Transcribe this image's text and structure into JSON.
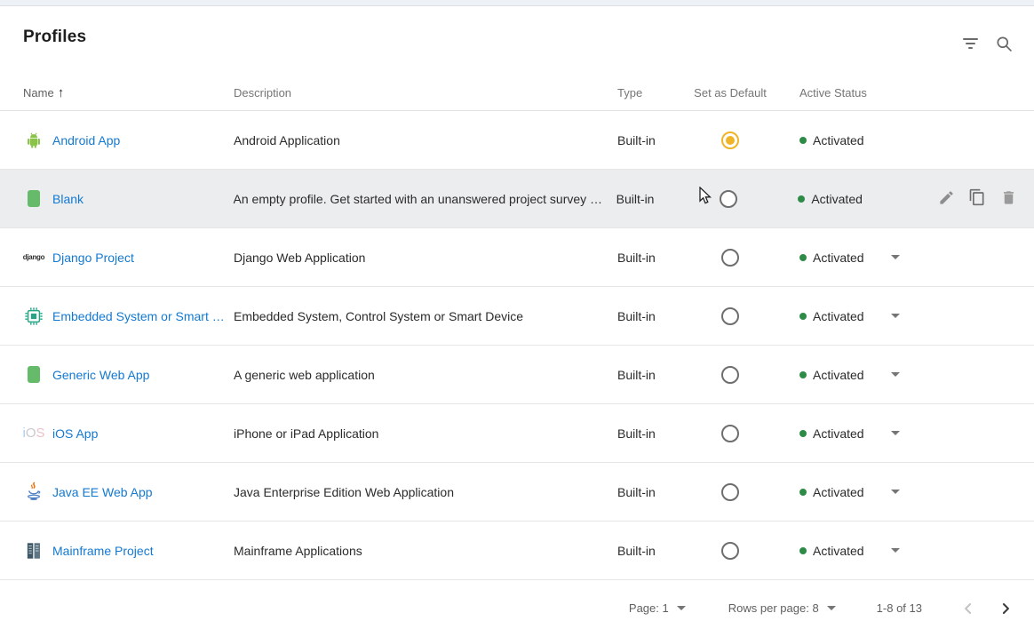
{
  "page": {
    "title": "Profiles"
  },
  "toolbar": {
    "filter_icon": "filter-list",
    "search_icon": "search"
  },
  "table": {
    "columns": {
      "name": "Name",
      "description": "Description",
      "type": "Type",
      "set_as_default": "Set as Default",
      "active_status": "Active Status"
    },
    "sort": {
      "column": "Name",
      "direction": "ascending"
    },
    "rows": [
      {
        "name": "Android App",
        "description": "Android Application",
        "type": "Built-in",
        "icon": "android-icon",
        "default": true,
        "status": "Activated",
        "caret": false,
        "hovered": false,
        "actions": false
      },
      {
        "name": "Blank",
        "description": "An empty profile. Get started with an unanswered project survey …",
        "type": "Built-in",
        "icon": "book-icon",
        "default": false,
        "status": "Activated",
        "caret": false,
        "hovered": true,
        "actions": true
      },
      {
        "name": "Django Project",
        "description": "Django Web Application",
        "type": "Built-in",
        "icon": "django-icon",
        "default": false,
        "status": "Activated",
        "caret": true,
        "hovered": false,
        "actions": false
      },
      {
        "name": "Embedded System or Smart …",
        "description": "Embedded System, Control System or Smart Device",
        "type": "Built-in",
        "icon": "chip-icon",
        "default": false,
        "status": "Activated",
        "caret": true,
        "hovered": false,
        "actions": false
      },
      {
        "name": "Generic Web App",
        "description": "A generic web application",
        "type": "Built-in",
        "icon": "book-icon",
        "default": false,
        "status": "Activated",
        "caret": true,
        "hovered": false,
        "actions": false
      },
      {
        "name": "iOS App",
        "description": "iPhone or iPad Application",
        "type": "Built-in",
        "icon": "ios-icon",
        "default": false,
        "status": "Activated",
        "caret": true,
        "hovered": false,
        "actions": false
      },
      {
        "name": "Java EE Web App",
        "description": "Java Enterprise Edition Web Application",
        "type": "Built-in",
        "icon": "java-icon",
        "default": false,
        "status": "Activated",
        "caret": true,
        "hovered": false,
        "actions": false
      },
      {
        "name": "Mainframe Project",
        "description": "Mainframe Applications",
        "type": "Built-in",
        "icon": "mainframe-icon",
        "default": false,
        "status": "Activated",
        "caret": true,
        "hovered": false,
        "actions": false
      }
    ]
  },
  "icon_texts": {
    "django": "django",
    "ios_i": "i",
    "ios_o": "O",
    "ios_s": "S"
  },
  "row_actions": {
    "edit": "edit-icon",
    "copy": "copy-icon",
    "delete": "delete-icon"
  },
  "pagination": {
    "page_label": "Page:",
    "page_value": "1",
    "rows_label": "Rows per page:",
    "rows_value": "8",
    "range": "1-8 of 13"
  },
  "colors": {
    "link_blue": "#1379d1",
    "selected_radio_amber": "#f0b429",
    "status_green": "#2e8b47",
    "hover_row": "#ecedef"
  }
}
